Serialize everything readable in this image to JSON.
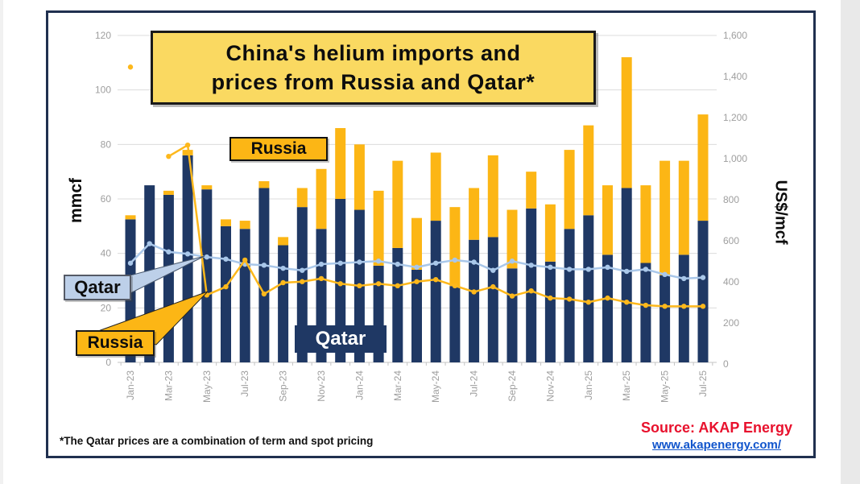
{
  "title": {
    "line1": "China's helium imports and",
    "line2": "prices from Russia and Qatar*"
  },
  "left_axis": {
    "label": "mmcf",
    "ticks": [
      "0",
      "20",
      "40",
      "60",
      "80",
      "100",
      "120"
    ]
  },
  "right_axis": {
    "label": "US$/mcf",
    "ticks": [
      "0",
      "200",
      "400",
      "600",
      "800",
      "1,000",
      "1,200",
      "1,400",
      "1,600"
    ]
  },
  "annotations": {
    "russia_bars_label": "Russia",
    "qatar_bars_label": "Qatar",
    "qatar_line_callout": "Qatar",
    "russia_line_callout": "Russia"
  },
  "footnote": "*The Qatar prices are a combination of term and spot pricing",
  "source": {
    "text": "Source: AKAP Energy",
    "link": "www.akapenergy.com/"
  },
  "colors": {
    "qatar_bar": "#1f3864",
    "russia_bar": "#fcb615",
    "qatar_line": "#a9c7e9",
    "russia_line": "#fdb81c",
    "title_bg": "#fad961",
    "callout_qatar_bg": "#bdd0e9",
    "source_red": "#e8112d",
    "link_blue": "#1155cc",
    "frame_navy": "#20304f",
    "grid": "#dcdcdc",
    "tick_text": "#9e9e9e"
  },
  "chart_data": {
    "type": "bar",
    "subtype": "stacked bars with two price lines (combo)",
    "months": [
      "Jan-23",
      "Feb-23",
      "Mar-23",
      "Apr-23",
      "May-23",
      "Jun-23",
      "Jul-23",
      "Aug-23",
      "Sep-23",
      "Oct-23",
      "Nov-23",
      "Dec-23",
      "Jan-24",
      "Feb-24",
      "Mar-24",
      "Apr-24",
      "May-24",
      "Jun-24",
      "Jul-24",
      "Aug-24",
      "Sep-24",
      "Oct-24",
      "Nov-24",
      "Dec-24",
      "Jan-25",
      "Feb-25",
      "Mar-25",
      "Apr-25",
      "May-25",
      "Jun-25",
      "Jul-25"
    ],
    "bar_series": [
      {
        "name": "Qatar imports",
        "unit": "mmcf",
        "axis": "left",
        "color": "#1f3864",
        "values": [
          52.5,
          65,
          61.5,
          76,
          63.5,
          50,
          49,
          64,
          43,
          57,
          49,
          60,
          56,
          35.5,
          42,
          34,
          52,
          28,
          45,
          46,
          34.5,
          56.5,
          37,
          49,
          54,
          39.5,
          64,
          36.5,
          32,
          39.5,
          52
        ]
      },
      {
        "name": "Russia imports",
        "unit": "mmcf",
        "axis": "left",
        "color": "#fcb615",
        "values": [
          1.5,
          0,
          1.5,
          2,
          1.5,
          2.5,
          3,
          2.5,
          3,
          7,
          22,
          26,
          24,
          27.5,
          32,
          19,
          25,
          29,
          19,
          30,
          21.5,
          13.5,
          21,
          29,
          33,
          25.5,
          48,
          28.5,
          42,
          34.5,
          39
        ]
      }
    ],
    "line_series": [
      {
        "name": "Qatar price",
        "unit": "US$/mcf",
        "axis": "right",
        "color": "#a9c7e9",
        "values": [
          495,
          590,
          550,
          540,
          525,
          515,
          490,
          485,
          470,
          460,
          490,
          495,
          500,
          505,
          490,
          475,
          495,
          510,
          500,
          460,
          505,
          485,
          475,
          465,
          465,
          475,
          455,
          465,
          440,
          420,
          425
        ]
      },
      {
        "name": "Russia price",
        "unit": "US$/mcf",
        "axis": "right",
        "color": "#fdb81c",
        "values": [
          1450,
          null,
          1015,
          1070,
          340,
          380,
          510,
          345,
          400,
          405,
          420,
          395,
          385,
          395,
          385,
          405,
          415,
          385,
          355,
          380,
          335,
          360,
          325,
          320,
          305,
          325,
          305,
          290,
          285,
          285,
          285
        ]
      }
    ],
    "stacked": true,
    "left_ylim": [
      0,
      120
    ],
    "right_ylim": [
      0,
      1600
    ],
    "grid": true,
    "x_tick_step": 2
  }
}
